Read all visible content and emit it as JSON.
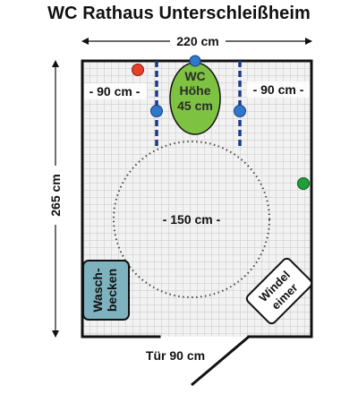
{
  "title": "WC Rathaus Unterschleißheim",
  "dimensions": {
    "width": "220 cm",
    "height": "265 cm",
    "left_space": "- 90 cm -",
    "right_space": "- 90 cm -",
    "turning_circle": "- 150 cm -",
    "door": "Tür 90 cm"
  },
  "toilet": {
    "line1": "WC",
    "line2": "Höhe",
    "line3": "45 cm"
  },
  "washbasin": {
    "line1": "Wasch-",
    "line2": "becken"
  },
  "bin": {
    "line1": "Windel",
    "line2": "eimer"
  },
  "colors": {
    "toilet_fill": "#7dc241",
    "washbasin_fill": "#7fb2bf",
    "grab_bar": "#1b3a8a",
    "grab_bar_knob": "#2f79c9",
    "red_dot": "#e8402a",
    "green_dot": "#1f9e3a",
    "grid": "#c8c8c8",
    "floor": "#f0f0f0"
  }
}
